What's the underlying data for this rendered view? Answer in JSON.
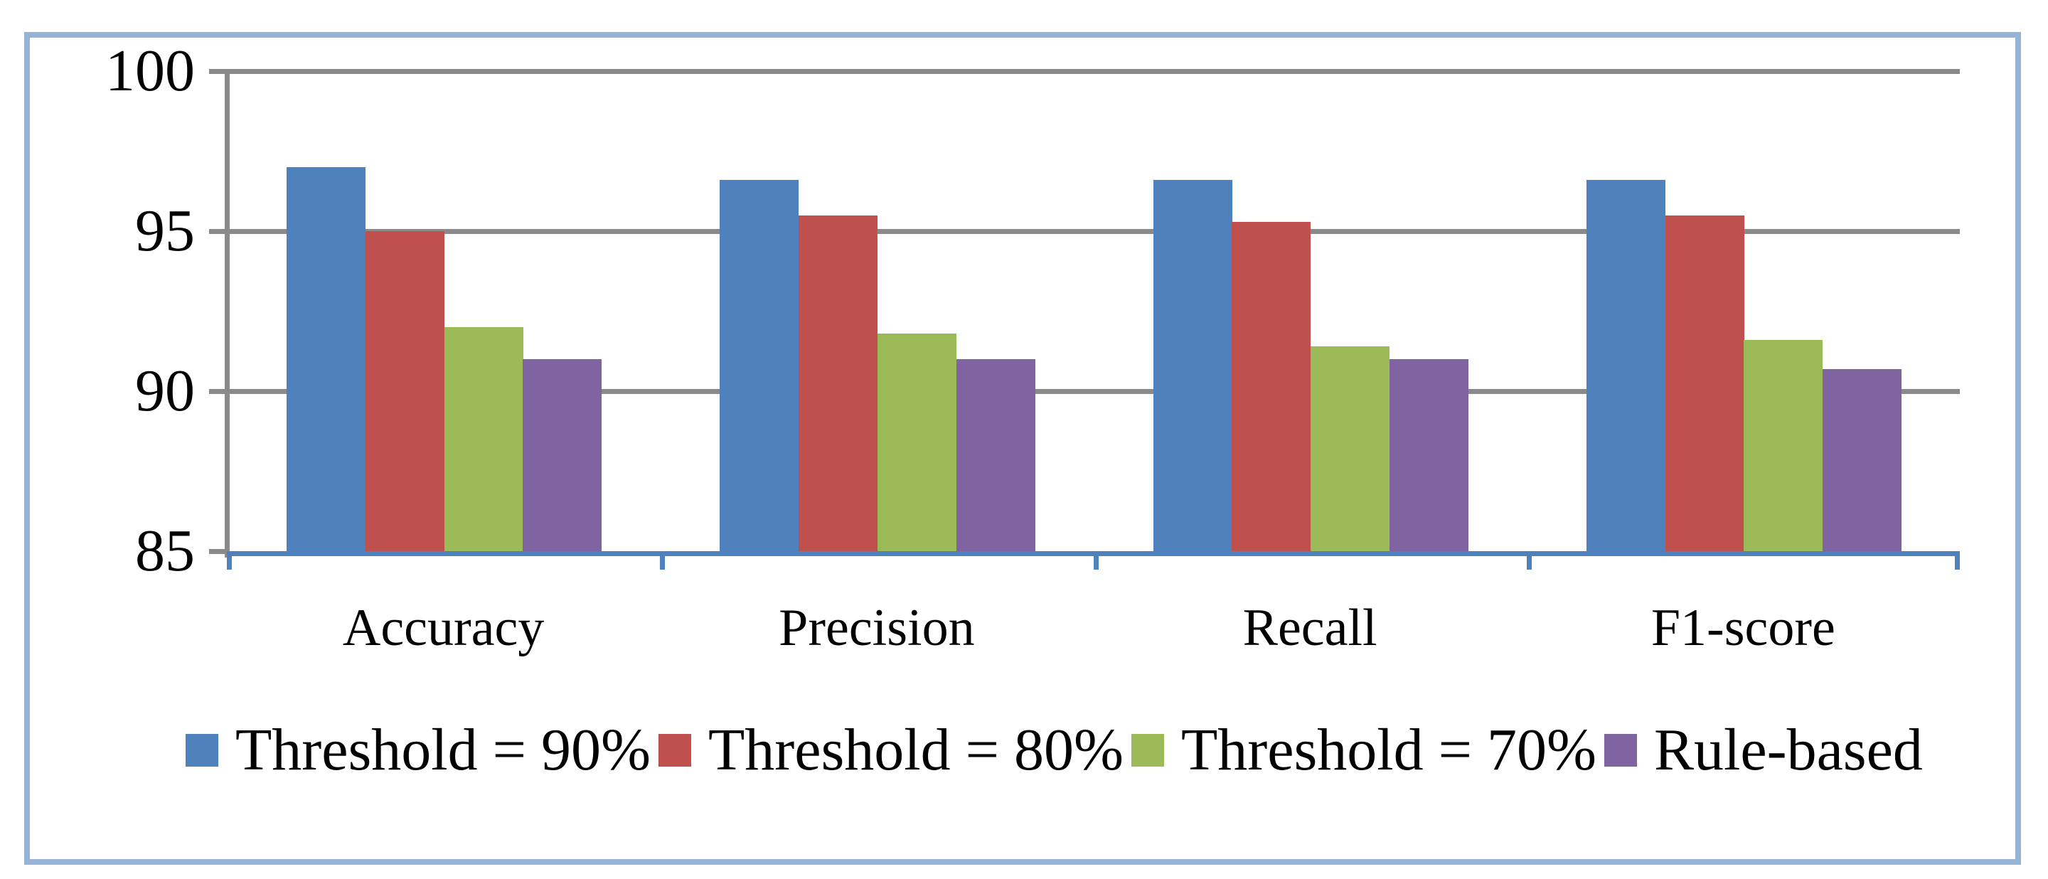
{
  "chart_data": {
    "type": "bar",
    "title": "",
    "xlabel": "",
    "ylabel": "",
    "categories": [
      "Accuracy",
      "Precision",
      "Recall",
      "F1-score"
    ],
    "series": [
      {
        "name": "Threshold = 90%",
        "color": "#4F81BD",
        "values": [
          97.0,
          96.6,
          96.6,
          96.6
        ]
      },
      {
        "name": "Threshold = 80%",
        "color": "#C0504D",
        "values": [
          95.0,
          95.5,
          95.3,
          95.5
        ]
      },
      {
        "name": "Threshold = 70%",
        "color": "#9BBB59",
        "values": [
          92.0,
          91.8,
          91.4,
          91.6
        ]
      },
      {
        "name": "Rule-based",
        "color": "#8064A2",
        "values": [
          91.0,
          91.0,
          91.0,
          90.7
        ]
      }
    ],
    "ylim": [
      85,
      100
    ],
    "yticks": [
      "100",
      "95",
      "90",
      "85"
    ],
    "grid": true,
    "legend_position": "bottom"
  },
  "colors": {
    "grid": "#8A8A8A",
    "x_axis": "#4F81BD",
    "chart_border": "#95B3D7",
    "text": "#000000",
    "background": "#FFFFFF"
  }
}
